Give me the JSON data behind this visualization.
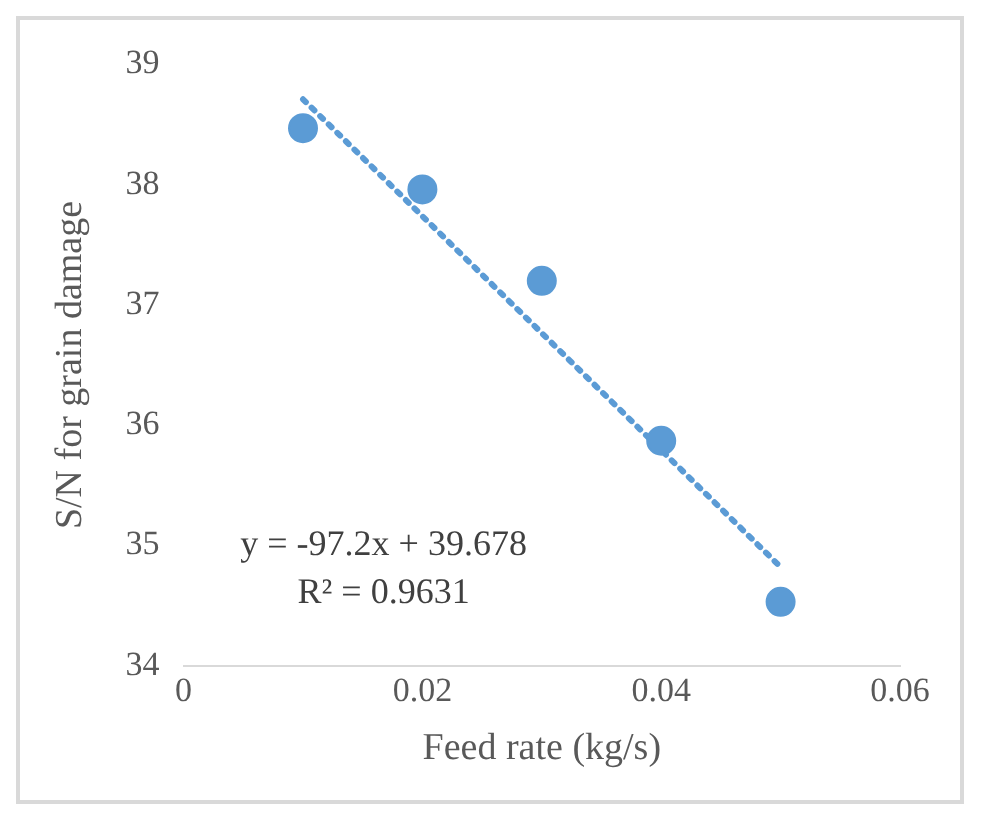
{
  "chart_data": {
    "type": "scatter",
    "xlabel": "Feed rate (kg/s)",
    "ylabel": "S/N for grain damage",
    "xlim": [
      0,
      0.06
    ],
    "xticks": [
      0,
      0.02,
      0.04,
      0.06
    ],
    "ylim": [
      34,
      39
    ],
    "yticks": [
      34,
      35,
      36,
      37,
      38,
      39
    ],
    "grid": false,
    "legend": false,
    "marker": "circle",
    "series": [
      {
        "type": "scatter",
        "color": "#5b9bd5",
        "x": [
          0.01,
          0.02,
          0.03,
          0.04,
          0.05
        ],
        "values": [
          38.47,
          37.96,
          37.2,
          35.87,
          34.53
        ]
      },
      {
        "type": "line",
        "color": "#5b9bd5",
        "line_style": "dotted",
        "marker": "none",
        "x": [
          0.01,
          0.05
        ],
        "values": [
          38.71,
          34.82
        ]
      }
    ],
    "annotations": [
      "y = -97.2x + 39.678",
      "R² = 0.9631"
    ]
  }
}
